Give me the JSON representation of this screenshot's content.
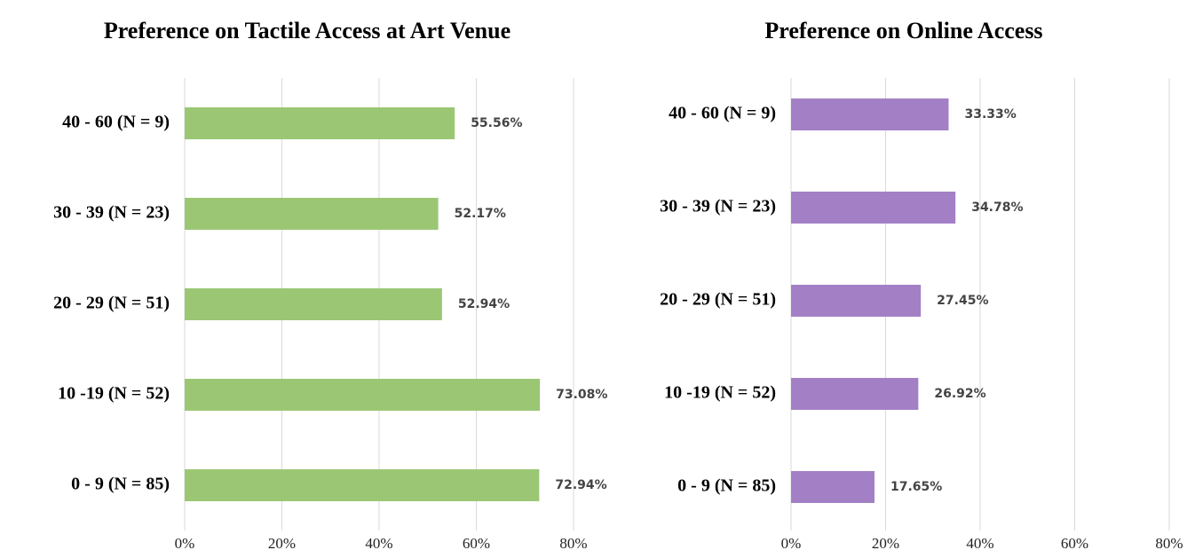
{
  "chart_data": [
    {
      "type": "bar",
      "orientation": "horizontal",
      "title": "Preference on Tactile Access at Art Venue",
      "categories": [
        "40 - 60 (N = 9)",
        "30 - 39 (N = 23)",
        "20 - 29 (N = 51)",
        "10 -19 (N = 52)",
        "0 - 9 (N = 85)"
      ],
      "values": [
        55.56,
        52.17,
        52.94,
        73.08,
        72.94
      ],
      "value_labels": [
        "55.56%",
        "52.17%",
        "52.94%",
        "73.08%",
        "72.94%"
      ],
      "color": "#9bc774",
      "xlim": [
        0,
        80
      ],
      "xticks": [
        {
          "value": 0,
          "label": "0%"
        },
        {
          "value": 20,
          "label": "20%"
        },
        {
          "value": 40,
          "label": "40%"
        },
        {
          "value": 60,
          "label": "60%"
        },
        {
          "value": 80,
          "label": "80%"
        }
      ],
      "grid": true
    },
    {
      "type": "bar",
      "orientation": "horizontal",
      "title": "Preference on Online Access",
      "categories": [
        "40 - 60 (N = 9)",
        "30 - 39 (N = 23)",
        "20 - 29 (N = 51)",
        "10 -19 (N = 52)",
        "0 - 9 (N = 85)"
      ],
      "values": [
        33.33,
        34.78,
        27.45,
        26.92,
        17.65
      ],
      "value_labels": [
        "33.33%",
        "34.78%",
        "27.45%",
        "26.92%",
        "17.65%"
      ],
      "color": "#a380c6",
      "xlim": [
        0,
        80
      ],
      "xticks": [
        {
          "value": 0,
          "label": "0%"
        },
        {
          "value": 20,
          "label": "20%"
        },
        {
          "value": 40,
          "label": "40%"
        },
        {
          "value": 60,
          "label": "60%"
        },
        {
          "value": 80,
          "label": "80%"
        }
      ],
      "grid": true
    }
  ]
}
